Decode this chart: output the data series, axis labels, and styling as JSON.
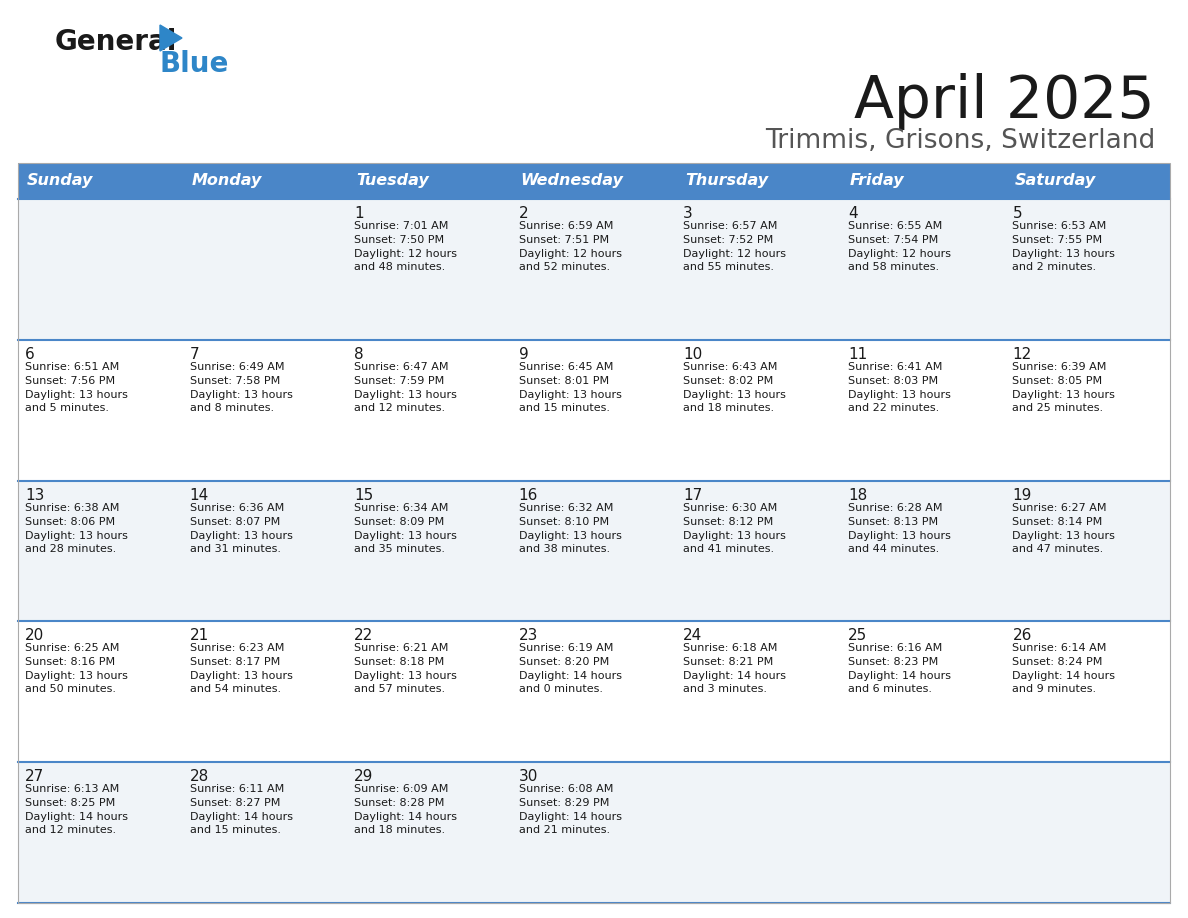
{
  "title": "April 2025",
  "subtitle": "Trimmis, Grisons, Switzerland",
  "header_color": "#4a86c8",
  "header_text_color": "#ffffff",
  "days_of_week": [
    "Sunday",
    "Monday",
    "Tuesday",
    "Wednesday",
    "Thursday",
    "Friday",
    "Saturday"
  ],
  "divider_color": "#4a86c8",
  "text_color": "#1a1a1a",
  "weeks": [
    [
      {
        "day": "",
        "sunrise": "",
        "sunset": "",
        "daylight": ""
      },
      {
        "day": "",
        "sunrise": "",
        "sunset": "",
        "daylight": ""
      },
      {
        "day": "1",
        "sunrise": "Sunrise: 7:01 AM",
        "sunset": "Sunset: 7:50 PM",
        "daylight": "Daylight: 12 hours\nand 48 minutes."
      },
      {
        "day": "2",
        "sunrise": "Sunrise: 6:59 AM",
        "sunset": "Sunset: 7:51 PM",
        "daylight": "Daylight: 12 hours\nand 52 minutes."
      },
      {
        "day": "3",
        "sunrise": "Sunrise: 6:57 AM",
        "sunset": "Sunset: 7:52 PM",
        "daylight": "Daylight: 12 hours\nand 55 minutes."
      },
      {
        "day": "4",
        "sunrise": "Sunrise: 6:55 AM",
        "sunset": "Sunset: 7:54 PM",
        "daylight": "Daylight: 12 hours\nand 58 minutes."
      },
      {
        "day": "5",
        "sunrise": "Sunrise: 6:53 AM",
        "sunset": "Sunset: 7:55 PM",
        "daylight": "Daylight: 13 hours\nand 2 minutes."
      }
    ],
    [
      {
        "day": "6",
        "sunrise": "Sunrise: 6:51 AM",
        "sunset": "Sunset: 7:56 PM",
        "daylight": "Daylight: 13 hours\nand 5 minutes."
      },
      {
        "day": "7",
        "sunrise": "Sunrise: 6:49 AM",
        "sunset": "Sunset: 7:58 PM",
        "daylight": "Daylight: 13 hours\nand 8 minutes."
      },
      {
        "day": "8",
        "sunrise": "Sunrise: 6:47 AM",
        "sunset": "Sunset: 7:59 PM",
        "daylight": "Daylight: 13 hours\nand 12 minutes."
      },
      {
        "day": "9",
        "sunrise": "Sunrise: 6:45 AM",
        "sunset": "Sunset: 8:01 PM",
        "daylight": "Daylight: 13 hours\nand 15 minutes."
      },
      {
        "day": "10",
        "sunrise": "Sunrise: 6:43 AM",
        "sunset": "Sunset: 8:02 PM",
        "daylight": "Daylight: 13 hours\nand 18 minutes."
      },
      {
        "day": "11",
        "sunrise": "Sunrise: 6:41 AM",
        "sunset": "Sunset: 8:03 PM",
        "daylight": "Daylight: 13 hours\nand 22 minutes."
      },
      {
        "day": "12",
        "sunrise": "Sunrise: 6:39 AM",
        "sunset": "Sunset: 8:05 PM",
        "daylight": "Daylight: 13 hours\nand 25 minutes."
      }
    ],
    [
      {
        "day": "13",
        "sunrise": "Sunrise: 6:38 AM",
        "sunset": "Sunset: 8:06 PM",
        "daylight": "Daylight: 13 hours\nand 28 minutes."
      },
      {
        "day": "14",
        "sunrise": "Sunrise: 6:36 AM",
        "sunset": "Sunset: 8:07 PM",
        "daylight": "Daylight: 13 hours\nand 31 minutes."
      },
      {
        "day": "15",
        "sunrise": "Sunrise: 6:34 AM",
        "sunset": "Sunset: 8:09 PM",
        "daylight": "Daylight: 13 hours\nand 35 minutes."
      },
      {
        "day": "16",
        "sunrise": "Sunrise: 6:32 AM",
        "sunset": "Sunset: 8:10 PM",
        "daylight": "Daylight: 13 hours\nand 38 minutes."
      },
      {
        "day": "17",
        "sunrise": "Sunrise: 6:30 AM",
        "sunset": "Sunset: 8:12 PM",
        "daylight": "Daylight: 13 hours\nand 41 minutes."
      },
      {
        "day": "18",
        "sunrise": "Sunrise: 6:28 AM",
        "sunset": "Sunset: 8:13 PM",
        "daylight": "Daylight: 13 hours\nand 44 minutes."
      },
      {
        "day": "19",
        "sunrise": "Sunrise: 6:27 AM",
        "sunset": "Sunset: 8:14 PM",
        "daylight": "Daylight: 13 hours\nand 47 minutes."
      }
    ],
    [
      {
        "day": "20",
        "sunrise": "Sunrise: 6:25 AM",
        "sunset": "Sunset: 8:16 PM",
        "daylight": "Daylight: 13 hours\nand 50 minutes."
      },
      {
        "day": "21",
        "sunrise": "Sunrise: 6:23 AM",
        "sunset": "Sunset: 8:17 PM",
        "daylight": "Daylight: 13 hours\nand 54 minutes."
      },
      {
        "day": "22",
        "sunrise": "Sunrise: 6:21 AM",
        "sunset": "Sunset: 8:18 PM",
        "daylight": "Daylight: 13 hours\nand 57 minutes."
      },
      {
        "day": "23",
        "sunrise": "Sunrise: 6:19 AM",
        "sunset": "Sunset: 8:20 PM",
        "daylight": "Daylight: 14 hours\nand 0 minutes."
      },
      {
        "day": "24",
        "sunrise": "Sunrise: 6:18 AM",
        "sunset": "Sunset: 8:21 PM",
        "daylight": "Daylight: 14 hours\nand 3 minutes."
      },
      {
        "day": "25",
        "sunrise": "Sunrise: 6:16 AM",
        "sunset": "Sunset: 8:23 PM",
        "daylight": "Daylight: 14 hours\nand 6 minutes."
      },
      {
        "day": "26",
        "sunrise": "Sunrise: 6:14 AM",
        "sunset": "Sunset: 8:24 PM",
        "daylight": "Daylight: 14 hours\nand 9 minutes."
      }
    ],
    [
      {
        "day": "27",
        "sunrise": "Sunrise: 6:13 AM",
        "sunset": "Sunset: 8:25 PM",
        "daylight": "Daylight: 14 hours\nand 12 minutes."
      },
      {
        "day": "28",
        "sunrise": "Sunrise: 6:11 AM",
        "sunset": "Sunset: 8:27 PM",
        "daylight": "Daylight: 14 hours\nand 15 minutes."
      },
      {
        "day": "29",
        "sunrise": "Sunrise: 6:09 AM",
        "sunset": "Sunset: 8:28 PM",
        "daylight": "Daylight: 14 hours\nand 18 minutes."
      },
      {
        "day": "30",
        "sunrise": "Sunrise: 6:08 AM",
        "sunset": "Sunset: 8:29 PM",
        "daylight": "Daylight: 14 hours\nand 21 minutes."
      },
      {
        "day": "",
        "sunrise": "",
        "sunset": "",
        "daylight": ""
      },
      {
        "day": "",
        "sunrise": "",
        "sunset": "",
        "daylight": ""
      },
      {
        "day": "",
        "sunrise": "",
        "sunset": "",
        "daylight": ""
      }
    ]
  ]
}
